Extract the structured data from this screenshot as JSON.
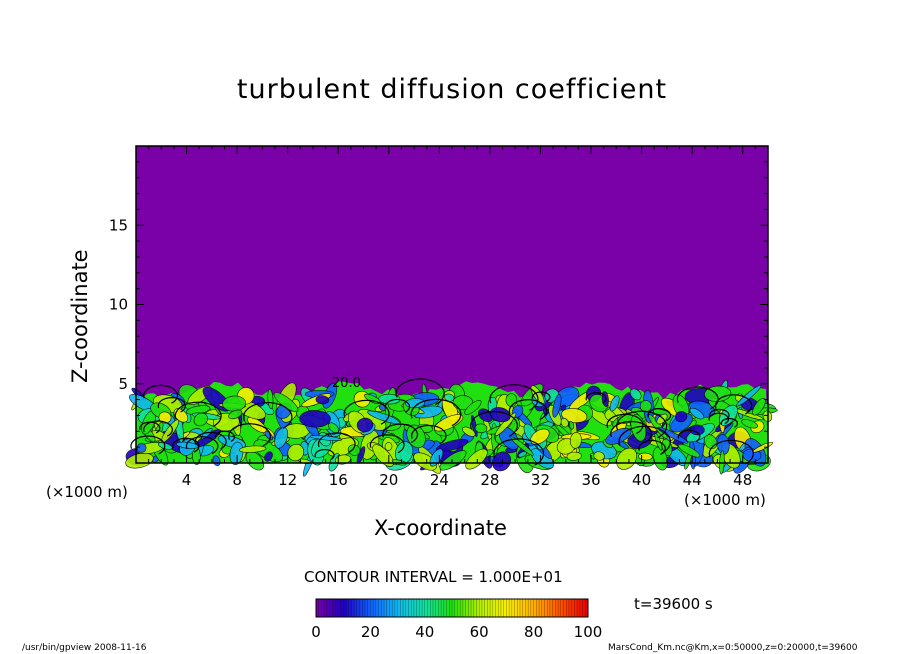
{
  "chart_data": {
    "type": "heatmap",
    "title": "turbulent diffusion coefficient",
    "xlabel": "X-coordinate",
    "ylabel": "Z-coordinate",
    "x_unit": "(×1000 m)",
    "y_unit": "(×1000 m)",
    "xlim": [
      0,
      50
    ],
    "ylim": [
      0,
      20
    ],
    "x_ticks": [
      4,
      8,
      12,
      16,
      20,
      24,
      28,
      32,
      36,
      40,
      44,
      48
    ],
    "y_ticks": [
      5,
      10,
      15
    ],
    "contour_label": "20.0",
    "contour_interval_text": "CONTOUR INTERVAL = 1.000E+01",
    "time_text": "t=39600 s",
    "colorbar": {
      "min": 0,
      "max": 100,
      "ticks": [
        0,
        20,
        40,
        60,
        80,
        100
      ],
      "colors": [
        "#7a00a8",
        "#2000c0",
        "#1060ff",
        "#10b8f0",
        "#10e0a0",
        "#20e010",
        "#b0f000",
        "#f8f000",
        "#ffb000",
        "#ff5000",
        "#e80000"
      ]
    },
    "field_summary": {
      "background_value": 0,
      "turbulent_layer_top_km": 5,
      "dominant_values": [
        40,
        60
      ]
    }
  },
  "footer": {
    "left": "/usr/bin/gpview   2008-11-16",
    "right": "MarsCond_Km.nc@Km,x=0:50000,z=0:20000,t=39600"
  }
}
